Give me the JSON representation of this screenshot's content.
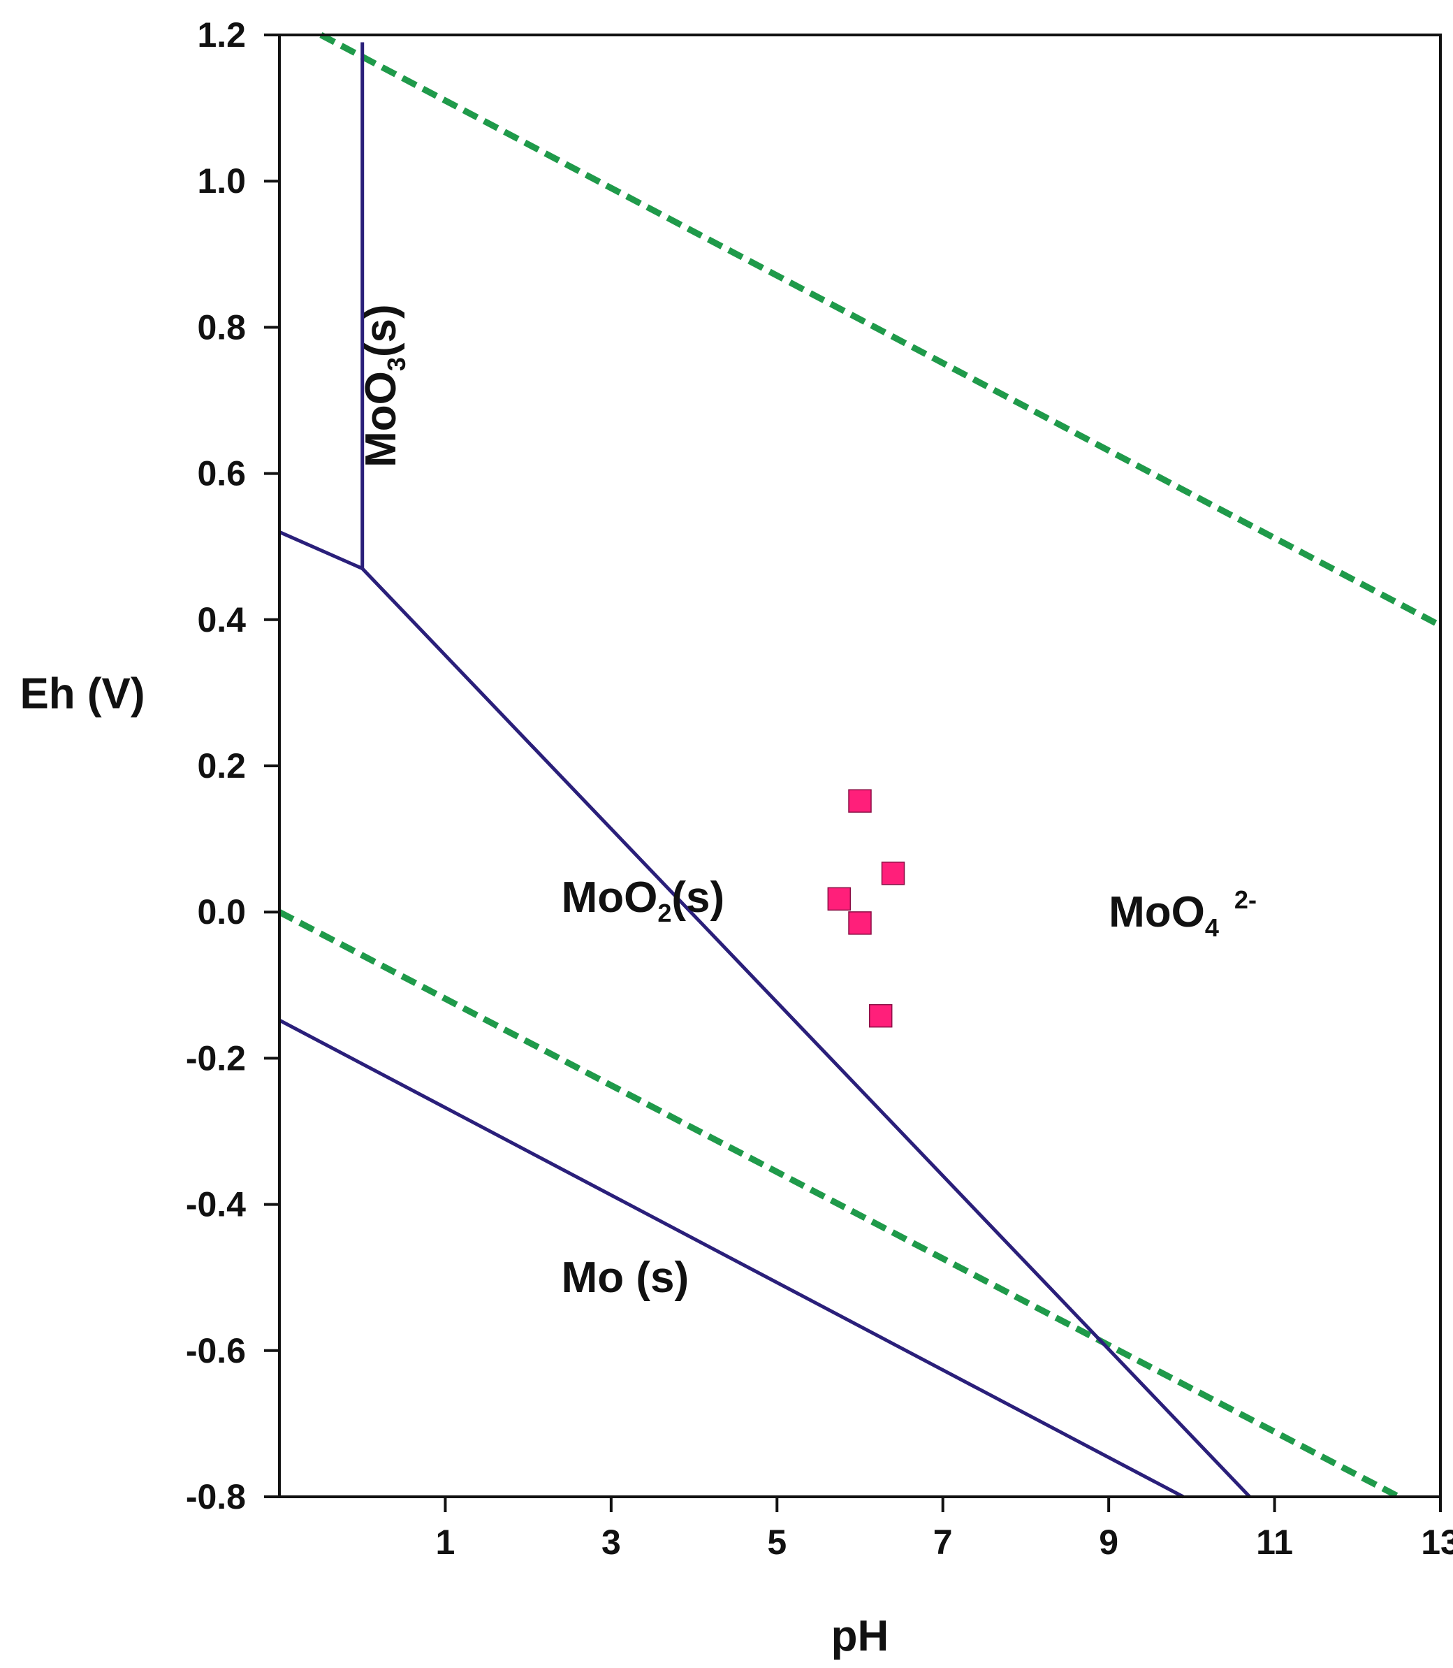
{
  "chart_data": {
    "type": "line",
    "title": "",
    "xlabel": "pH",
    "ylabel": "Eh (V)",
    "xlim": [
      -1,
      13
    ],
    "ylim": [
      -0.8,
      1.2
    ],
    "x_ticks": [
      1,
      3,
      5,
      7,
      9,
      11,
      13
    ],
    "x_tick_labels": [
      "1",
      "3",
      "5",
      "7",
      "9",
      "11",
      "13"
    ],
    "y_ticks": [
      1.2,
      1.0,
      0.8,
      0.6,
      0.4,
      0.2,
      0.0,
      -0.2,
      -0.4,
      -0.6,
      -0.8
    ],
    "y_tick_labels": [
      "1.2",
      "1.0",
      "0.8",
      "0.6",
      "0.4",
      "0.2",
      "0.0",
      "-0.2",
      "-0.4",
      "-0.6",
      "-0.8"
    ],
    "colors": {
      "boundary": "#2a1f7a",
      "water": "#1f9a4a",
      "points": "#ff1f7a",
      "axis": "#111111"
    },
    "series": [
      {
        "name": "water-stability-upper",
        "style": "dashed",
        "color": "#1f9a4a",
        "x": [
          -0.5,
          13
        ],
        "y": [
          1.2,
          0.392
        ]
      },
      {
        "name": "water-stability-lower",
        "style": "dashed",
        "color": "#1f9a4a",
        "x": [
          -1,
          12.5
        ],
        "y": [
          0.0,
          -0.8
        ]
      },
      {
        "name": "MoO3-MoO4-boundary",
        "style": "solid",
        "color": "#2a1f7a",
        "x": [
          0,
          0
        ],
        "y": [
          1.19,
          0.47
        ]
      },
      {
        "name": "MoO3-MoO2-boundary",
        "style": "solid",
        "color": "#2a1f7a",
        "x": [
          -1,
          0
        ],
        "y": [
          0.52,
          0.47
        ]
      },
      {
        "name": "MoO2-MoO4-boundary",
        "style": "solid",
        "color": "#2a1f7a",
        "x": [
          0,
          10.7
        ],
        "y": [
          0.47,
          -0.8
        ]
      },
      {
        "name": "Mo-MoO2-boundary",
        "style": "solid",
        "color": "#2a1f7a",
        "x": [
          -1,
          9.9
        ],
        "y": [
          -0.148,
          -0.8
        ]
      }
    ],
    "points": {
      "name": "samples",
      "marker": "square",
      "color": "#ff1f7a",
      "x": [
        6.0,
        6.4,
        5.75,
        6.0,
        6.25
      ],
      "y": [
        0.152,
        0.053,
        0.018,
        -0.015,
        -0.142
      ]
    },
    "annotations": [
      {
        "id": "moo3",
        "main": "MoO",
        "sub": "3",
        "tail": "(s)",
        "sup": "",
        "x": 0.4,
        "y": 0.72,
        "rotate": -90
      },
      {
        "id": "moo2",
        "main": "MoO",
        "sub": "2",
        "tail": "(s)",
        "sup": "",
        "x": 2.4,
        "y": 0.0,
        "rotate": 0
      },
      {
        "id": "moo4",
        "main": "MoO",
        "sub": "4",
        "tail": "",
        "sup": "2-",
        "x": 9.0,
        "y": -0.02,
        "rotate": 0
      },
      {
        "id": "mo",
        "main": "Mo (s)",
        "sub": "",
        "tail": "",
        "sup": "",
        "x": 2.4,
        "y": -0.52,
        "rotate": 0
      }
    ]
  }
}
